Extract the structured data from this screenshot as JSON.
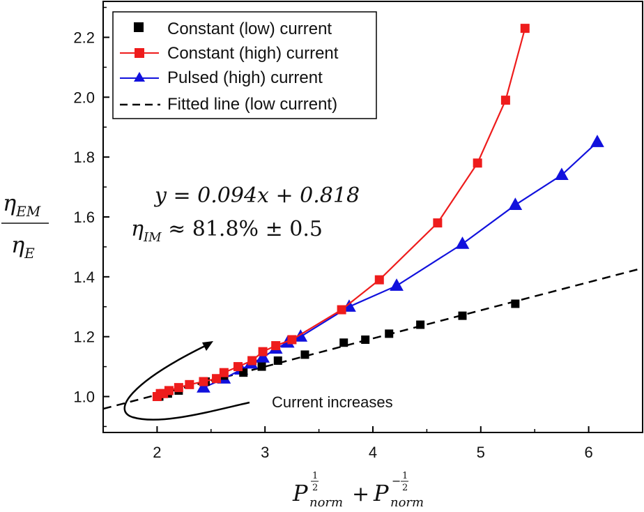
{
  "chart_data": {
    "type": "scatter",
    "xlim": [
      1.5,
      6.5
    ],
    "ylim": [
      0.88,
      2.32
    ],
    "x_ticks": [
      2,
      3,
      4,
      5,
      6
    ],
    "y_ticks": [
      1.0,
      1.2,
      1.4,
      1.6,
      1.8,
      2.0,
      2.2
    ],
    "x_tick_labels": [
      "2",
      "3",
      "4",
      "5",
      "6"
    ],
    "y_tick_labels": [
      "1.0",
      "1.2",
      "1.4",
      "1.6",
      "1.8",
      "2.0",
      "2.2"
    ],
    "xlabel": "P_norm^(1/2) + P_norm^(-1/2)",
    "ylabel": "η_EM / η_E",
    "grid": false,
    "legend_position": "top-left",
    "series": [
      {
        "name": "Constant (low) current",
        "marker": "square",
        "line": "none",
        "color": "#000000",
        "x": [
          2.02,
          2.06,
          2.1,
          2.2,
          2.3,
          2.45,
          2.62,
          2.8,
          2.97,
          3.12,
          3.37,
          3.73,
          3.93,
          4.15,
          4.44,
          4.83,
          5.32
        ],
        "y": [
          1.0,
          1.01,
          1.01,
          1.02,
          1.04,
          1.05,
          1.07,
          1.08,
          1.1,
          1.12,
          1.14,
          1.18,
          1.19,
          1.21,
          1.24,
          1.27,
          1.31
        ]
      },
      {
        "name": "Constant (high) current",
        "marker": "square",
        "line": "solid",
        "color": "#ee1c1c",
        "x": [
          2.0,
          2.03,
          2.06,
          2.11,
          2.2,
          2.3,
          2.43,
          2.55,
          2.62,
          2.75,
          2.88,
          2.98,
          3.1,
          3.25,
          3.71,
          4.06,
          4.6,
          4.97,
          5.23,
          5.41
        ],
        "y": [
          1.0,
          1.01,
          1.01,
          1.02,
          1.03,
          1.04,
          1.05,
          1.06,
          1.08,
          1.1,
          1.12,
          1.15,
          1.17,
          1.19,
          1.29,
          1.39,
          1.58,
          1.78,
          1.99,
          2.23
        ]
      },
      {
        "name": "Pulsed (high) current",
        "marker": "triangle",
        "line": "solid",
        "color": "#1111dd",
        "x": [
          2.43,
          2.62,
          2.78,
          2.87,
          2.98,
          3.1,
          3.21,
          3.33,
          3.78,
          4.22,
          4.83,
          5.32,
          5.75,
          6.08
        ],
        "y": [
          1.03,
          1.06,
          1.09,
          1.11,
          1.13,
          1.16,
          1.18,
          1.2,
          1.3,
          1.37,
          1.51,
          1.64,
          1.74,
          1.85
        ]
      },
      {
        "name": "Fitted line (low current)",
        "marker": "none",
        "line": "dashed",
        "color": "#000000",
        "slope": 0.094,
        "intercept": 0.818,
        "x": [
          1.5,
          6.5
        ],
        "y": [
          0.959,
          1.429
        ]
      }
    ],
    "annotations": {
      "equation": "y = 0.094x + 0.818",
      "efficiency": "η_IM ≈ 81.8% ± 0.5",
      "arrow_text": "Current increases"
    }
  }
}
